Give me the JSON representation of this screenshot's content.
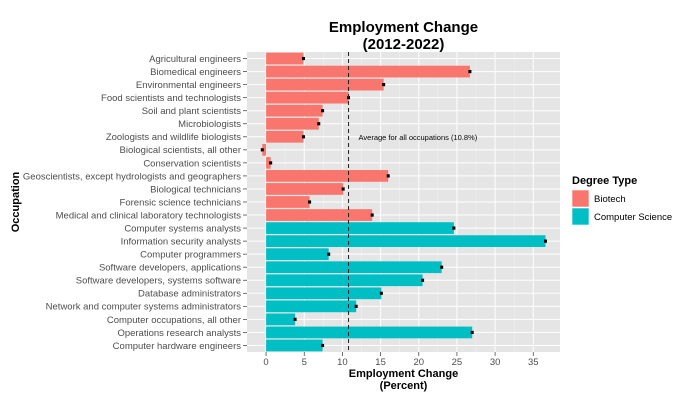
{
  "chart_data": {
    "type": "bar",
    "orientation": "horizontal",
    "title_lines": [
      "Employment Change",
      "(2012-2022)"
    ],
    "xlabel_lines": [
      "Employment Change",
      "(Percent)"
    ],
    "ylabel": "Occupation",
    "xlim": [
      -2.5,
      38.5
    ],
    "xticks": [
      0,
      5,
      10,
      15,
      20,
      25,
      30,
      35
    ],
    "grid": true,
    "reference_line": {
      "value": 10.8,
      "style": "dashed",
      "label": "Average for all occupations (10.8%)"
    },
    "legend": {
      "title": "Degree Type",
      "position": "right",
      "entries": [
        {
          "name": "Biotech",
          "color": "#f8766d"
        },
        {
          "name": "Computer Science",
          "color": "#00bfc4"
        }
      ]
    },
    "categories": [
      "Agricultural engineers",
      "Biomedical engineers",
      "Environmental engineers",
      "Food scientists and technologists",
      "Soil and plant scientists",
      "Microbiologists",
      "Zoologists and wildlife biologists",
      "Biological scientists, all other",
      "Conservation scientists",
      "Geoscientists, except hydrologists and geographers",
      "Biological technicians",
      "Forensic science technicians",
      "Medical and clinical laboratory technologists",
      "Computer systems analysts",
      "Information security analysts",
      "Computer programmers",
      "Software developers, applications",
      "Software developers, systems software",
      "Database administrators",
      "Network and computer systems administrators",
      "Computer occupations, all other",
      "Operations research analysts",
      "Computer hardware engineers"
    ],
    "values": [
      4.9,
      26.7,
      15.4,
      10.8,
      7.4,
      6.9,
      4.9,
      -0.5,
      0.6,
      16.0,
      10.1,
      5.7,
      13.9,
      24.6,
      36.6,
      8.2,
      23.0,
      20.5,
      15.1,
      11.8,
      3.8,
      27.0,
      7.4
    ],
    "groups": [
      "Biotech",
      "Biotech",
      "Biotech",
      "Biotech",
      "Biotech",
      "Biotech",
      "Biotech",
      "Biotech",
      "Biotech",
      "Biotech",
      "Biotech",
      "Biotech",
      "Biotech",
      "Computer Science",
      "Computer Science",
      "Computer Science",
      "Computer Science",
      "Computer Science",
      "Computer Science",
      "Computer Science",
      "Computer Science",
      "Computer Science",
      "Computer Science"
    ]
  }
}
